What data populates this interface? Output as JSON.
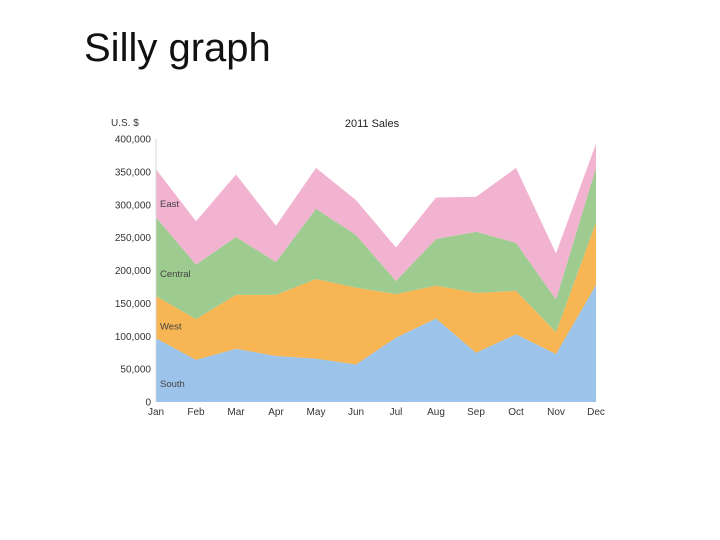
{
  "slide": {
    "title": "Silly graph"
  },
  "chart_data": {
    "type": "area",
    "stacked": true,
    "title": "2011 Sales",
    "ylabel": "U.S. $",
    "xlabel": "",
    "categories": [
      "Jan",
      "Feb",
      "Mar",
      "Apr",
      "May",
      "Jun",
      "Jul",
      "Aug",
      "Sep",
      "Oct",
      "Nov",
      "Dec"
    ],
    "ylim": [
      0,
      400000
    ],
    "yticks": [
      0,
      50000,
      100000,
      150000,
      200000,
      250000,
      300000,
      350000,
      400000
    ],
    "ytick_labels": [
      "0",
      "50,000",
      "100,000",
      "150,000",
      "200,000",
      "250,000",
      "300,000",
      "350,000",
      "400,000"
    ],
    "grid": false,
    "legend": "inline-left",
    "series": [
      {
        "name": "South",
        "color": "#9cc3e9",
        "values": [
          97000,
          64000,
          81000,
          70000,
          66000,
          57000,
          98000,
          127000,
          75000,
          103000,
          73000,
          178000
        ]
      },
      {
        "name": "West",
        "color": "#f7b553",
        "values": [
          64000,
          62000,
          82000,
          93000,
          121000,
          117000,
          66000,
          50000,
          91000,
          66000,
          33000,
          95000
        ]
      },
      {
        "name": "Central",
        "color": "#9ecb8f",
        "values": [
          120000,
          83000,
          88000,
          50000,
          107000,
          80000,
          20000,
          71000,
          93000,
          73000,
          50000,
          83000
        ]
      },
      {
        "name": "East",
        "color": "#f2b3d1",
        "values": [
          73000,
          66000,
          95000,
          55000,
          62000,
          53000,
          51000,
          63000,
          53000,
          114000,
          70000,
          37000
        ]
      }
    ]
  }
}
